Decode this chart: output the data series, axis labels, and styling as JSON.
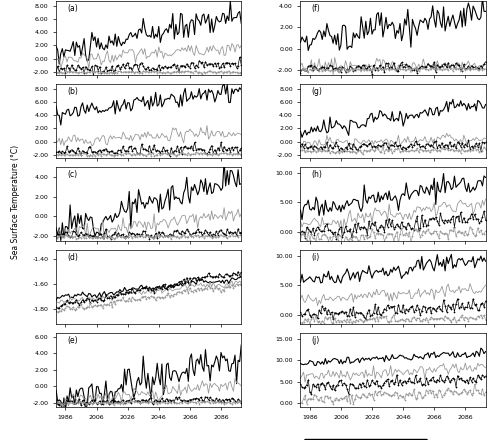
{
  "ylabel": "Sea Surface Temperature (°C)",
  "x_ticks": [
    1986,
    2006,
    2026,
    2046,
    2066,
    2086
  ],
  "panels_left": [
    {
      "label": "a",
      "ylim": [
        -2.5,
        8.8
      ],
      "yticks": [
        -2.0,
        0.0,
        2.0,
        4.0,
        6.0,
        8.0
      ]
    },
    {
      "label": "b",
      "ylim": [
        -2.5,
        8.8
      ],
      "yticks": [
        -2.0,
        0.0,
        2.0,
        4.0,
        6.0,
        8.0
      ]
    },
    {
      "label": "c",
      "ylim": [
        -2.5,
        5.0
      ],
      "yticks": [
        -2.0,
        0.0,
        2.0,
        4.0
      ]
    },
    {
      "label": "d",
      "ylim": [
        -1.92,
        -1.33
      ],
      "yticks": [
        -1.8,
        -1.6,
        -1.4
      ]
    },
    {
      "label": "e",
      "ylim": [
        -2.5,
        6.5
      ],
      "yticks": [
        -2.0,
        0.0,
        2.0,
        4.0,
        6.0
      ]
    }
  ],
  "panels_right": [
    {
      "label": "f",
      "ylim": [
        -2.5,
        4.5
      ],
      "yticks": [
        -2.0,
        0.0,
        2.0,
        4.0
      ]
    },
    {
      "label": "g",
      "ylim": [
        -2.5,
        8.8
      ],
      "yticks": [
        -2.0,
        0.0,
        2.0,
        4.0,
        6.0,
        8.0
      ]
    },
    {
      "label": "h",
      "ylim": [
        -1.5,
        11.0
      ],
      "yticks": [
        0.0,
        5.0,
        10.0
      ]
    },
    {
      "label": "i",
      "ylim": [
        -1.5,
        11.0
      ],
      "yticks": [
        0.0,
        5.0,
        10.0
      ]
    },
    {
      "label": "j",
      "ylim": [
        -1.0,
        16.5
      ],
      "yticks": [
        0.0,
        5.0,
        10.0,
        15.0
      ]
    }
  ],
  "seed": 42
}
